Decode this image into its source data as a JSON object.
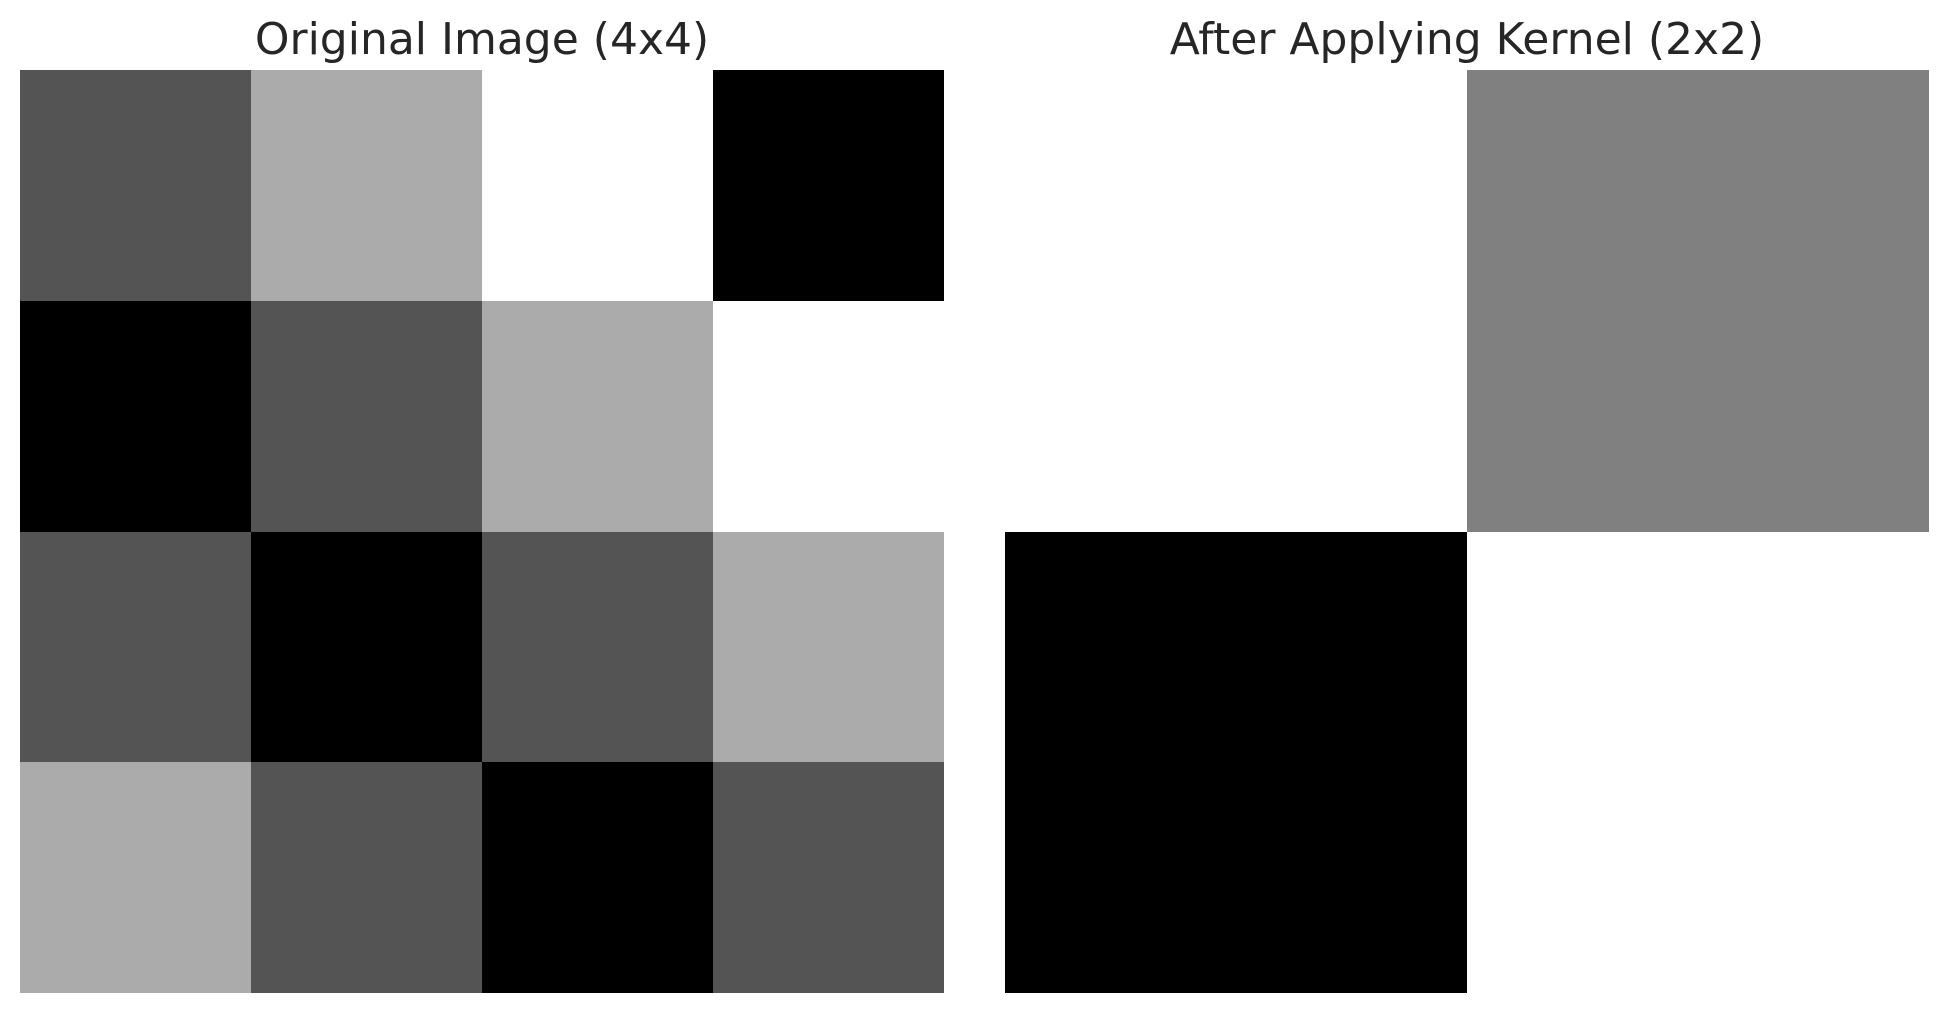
{
  "chart_data": [
    {
      "type": "heatmap",
      "title": "Original Image (4x4)",
      "rows": 4,
      "cols": 4,
      "colormap": "gray",
      "value_range": [
        0,
        1
      ],
      "grid": false,
      "axes_visible": false,
      "values": [
        [
          0.33,
          0.67,
          1.0,
          0.0
        ],
        [
          0.0,
          0.33,
          0.67,
          1.0
        ],
        [
          0.33,
          0.0,
          0.33,
          0.67
        ],
        [
          0.67,
          0.33,
          0.0,
          0.33
        ]
      ]
    },
    {
      "type": "heatmap",
      "title": "After Applying Kernel (2x2)",
      "rows": 2,
      "cols": 2,
      "colormap": "gray",
      "value_range": [
        0,
        1
      ],
      "grid": false,
      "axes_visible": false,
      "values": [
        [
          1.0,
          0.5
        ],
        [
          0.0,
          1.0
        ]
      ]
    }
  ]
}
